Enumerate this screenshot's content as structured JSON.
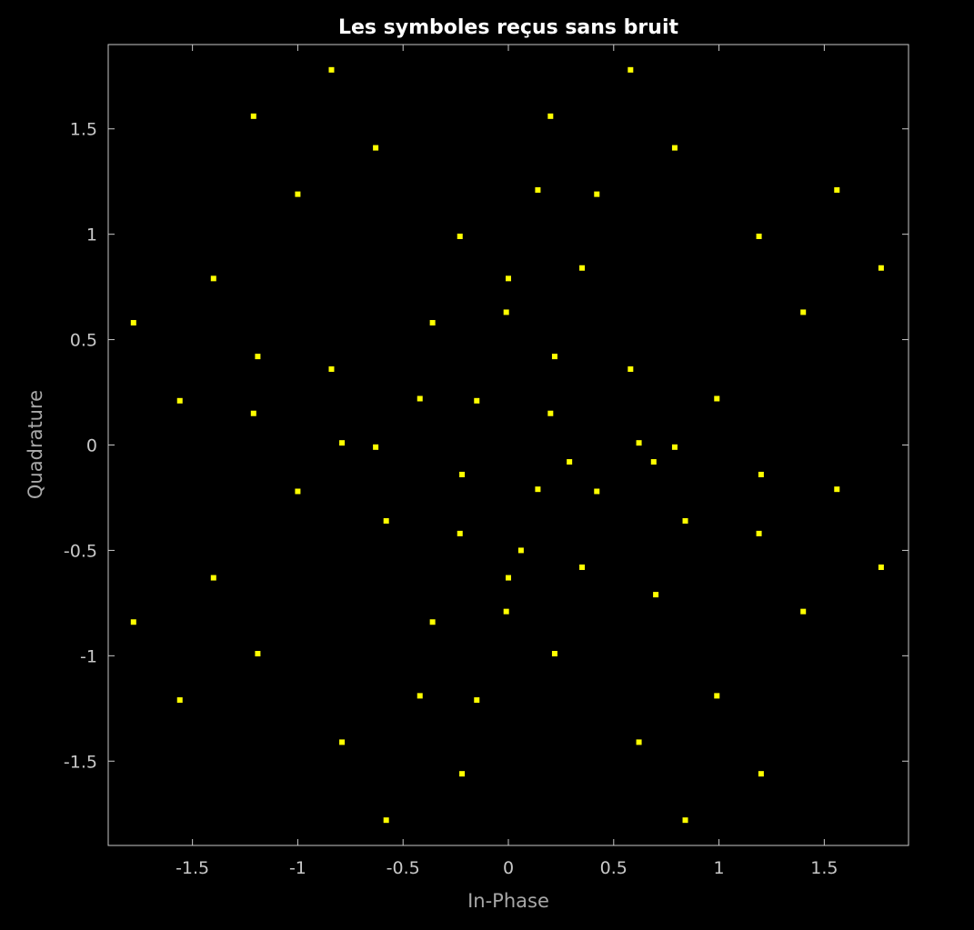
{
  "chart_data": {
    "type": "scatter",
    "title": "Les symboles reçus sans bruit",
    "xlabel": "In-Phase",
    "ylabel": "Quadrature",
    "xlim": [
      -1.9,
      1.9
    ],
    "ylim": [
      -1.9,
      1.9
    ],
    "grid": false,
    "background": "#000000",
    "axis_color": "#c8c8c8",
    "marker_color": "#ffff00",
    "xticks": [
      -1.5,
      -1,
      -0.5,
      0,
      0.5,
      1,
      1.5
    ],
    "xtick_labels": [
      "-1.5",
      "-1",
      "-0.5",
      "0",
      "0.5",
      "1",
      "1.5"
    ],
    "yticks": [
      1.5,
      1,
      0.5,
      0,
      -0.5,
      -1,
      -1.5
    ],
    "ytick_labels": [
      "1.5",
      "1",
      "0.5",
      "0",
      "-0.5",
      "-1",
      "-1.5"
    ],
    "series": [
      {
        "points": [
          [
            -0.84,
            1.78
          ],
          [
            0.58,
            1.78
          ],
          [
            -1.21,
            1.56
          ],
          [
            0.2,
            1.56
          ],
          [
            -0.63,
            1.41
          ],
          [
            0.79,
            1.41
          ],
          [
            -1.0,
            1.19
          ],
          [
            0.14,
            1.21
          ],
          [
            0.42,
            1.19
          ],
          [
            1.56,
            1.21
          ],
          [
            -0.23,
            0.99
          ],
          [
            1.19,
            0.99
          ],
          [
            -1.4,
            0.79
          ],
          [
            0.0,
            0.79
          ],
          [
            0.35,
            0.84
          ],
          [
            1.77,
            0.84
          ],
          [
            -1.78,
            0.58
          ],
          [
            -0.36,
            0.58
          ],
          [
            -0.01,
            0.63
          ],
          [
            1.4,
            0.63
          ],
          [
            -1.19,
            0.42
          ],
          [
            0.22,
            0.42
          ],
          [
            -0.84,
            0.36
          ],
          [
            0.58,
            0.36
          ],
          [
            -1.56,
            0.21
          ],
          [
            -0.42,
            0.22
          ],
          [
            -0.15,
            0.21
          ],
          [
            0.99,
            0.22
          ],
          [
            -1.21,
            0.15
          ],
          [
            0.2,
            0.15
          ],
          [
            -0.79,
            0.01
          ],
          [
            -0.63,
            -0.01
          ],
          [
            0.62,
            0.01
          ],
          [
            0.79,
            -0.01
          ],
          [
            0.29,
            -0.08
          ],
          [
            0.69,
            -0.08
          ],
          [
            -0.22,
            -0.14
          ],
          [
            1.2,
            -0.14
          ],
          [
            -1.0,
            -0.22
          ],
          [
            0.14,
            -0.21
          ],
          [
            0.42,
            -0.22
          ],
          [
            1.56,
            -0.21
          ],
          [
            -0.58,
            -0.36
          ],
          [
            0.84,
            -0.36
          ],
          [
            -0.23,
            -0.42
          ],
          [
            1.19,
            -0.42
          ],
          [
            0.06,
            -0.5
          ],
          [
            -1.4,
            -0.63
          ],
          [
            0.0,
            -0.63
          ],
          [
            0.35,
            -0.58
          ],
          [
            1.77,
            -0.58
          ],
          [
            0.7,
            -0.71
          ],
          [
            -1.78,
            -0.84
          ],
          [
            -0.36,
            -0.84
          ],
          [
            -0.01,
            -0.79
          ],
          [
            1.4,
            -0.79
          ],
          [
            -1.19,
            -0.99
          ],
          [
            0.22,
            -0.99
          ],
          [
            -1.56,
            -1.21
          ],
          [
            -0.42,
            -1.19
          ],
          [
            -0.15,
            -1.21
          ],
          [
            0.99,
            -1.19
          ],
          [
            -0.79,
            -1.41
          ],
          [
            0.62,
            -1.41
          ],
          [
            -0.22,
            -1.56
          ],
          [
            1.2,
            -1.56
          ],
          [
            -0.58,
            -1.78
          ],
          [
            0.84,
            -1.78
          ]
        ]
      }
    ]
  }
}
